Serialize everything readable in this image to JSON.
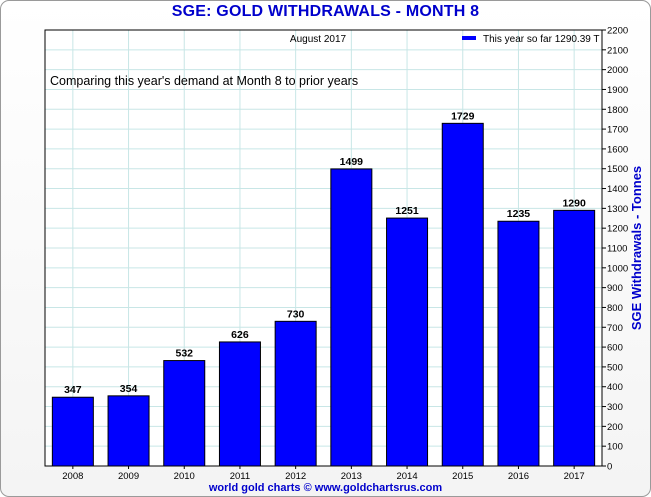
{
  "chart_data": {
    "type": "bar",
    "title": "SGE: GOLD WITHDRAWALS - MONTH 8",
    "subtitle": "August 2017",
    "annotation": "Comparing this year's demand at Month 8 to prior years",
    "ylabel": "SGE Withdrawals - Tonnes",
    "xlabel": "",
    "footer": "world gold charts © www.goldchartsrus.com",
    "legend": {
      "label": "This year so far 1290.39 T",
      "color": "#0000ff",
      "position": "top-right"
    },
    "categories": [
      "2008",
      "2009",
      "2010",
      "2011",
      "2012",
      "2013",
      "2014",
      "2015",
      "2016",
      "2017"
    ],
    "series": [
      {
        "name": "This year so far 1290.39 T",
        "values": [
          347,
          354,
          532,
          626,
          730,
          1499,
          1251,
          1729,
          1235,
          1290
        ],
        "color": "#0000ff"
      }
    ],
    "data_labels": [
      "347",
      "354",
      "532",
      "626",
      "730",
      "1499",
      "1251",
      "1729",
      "1235",
      "1290"
    ],
    "ylim": [
      0,
      2200
    ],
    "y_tick_step": 100,
    "y_axis_side": "right",
    "grid": true
  }
}
